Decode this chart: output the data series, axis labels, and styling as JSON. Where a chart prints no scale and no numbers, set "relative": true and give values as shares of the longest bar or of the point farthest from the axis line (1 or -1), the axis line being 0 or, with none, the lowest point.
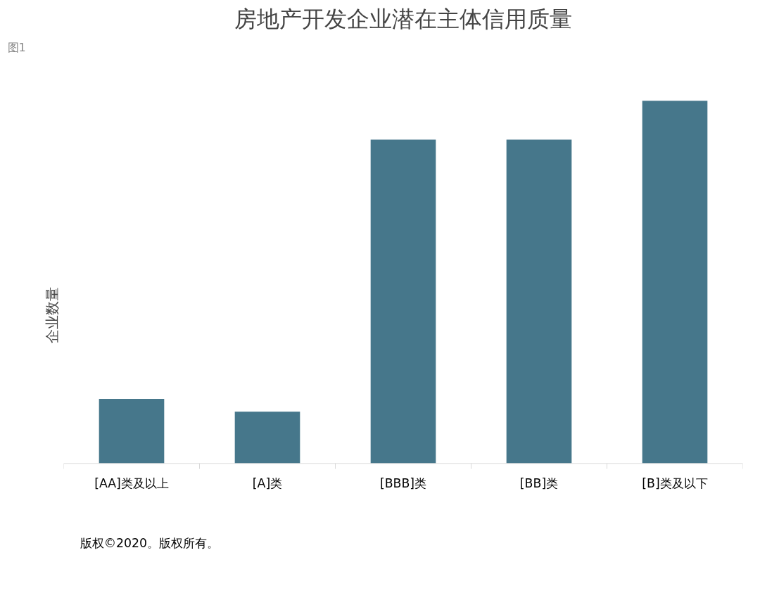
{
  "chart_data": {
    "type": "bar",
    "title": "房地产开发企业潜在主体信用质量",
    "ylabel": "企业数量",
    "categories": [
      "[AA]类及以上",
      "[A]类",
      "[BBB]类",
      "[BB]类",
      "[B]类及以下"
    ],
    "values": [
      0.178,
      0.143,
      0.893,
      0.893,
      1.0
    ],
    "color": "#46778b",
    "relative": true,
    "grid": false,
    "annotations": [
      "图1",
      "版权©2020。版权所有。"
    ]
  }
}
